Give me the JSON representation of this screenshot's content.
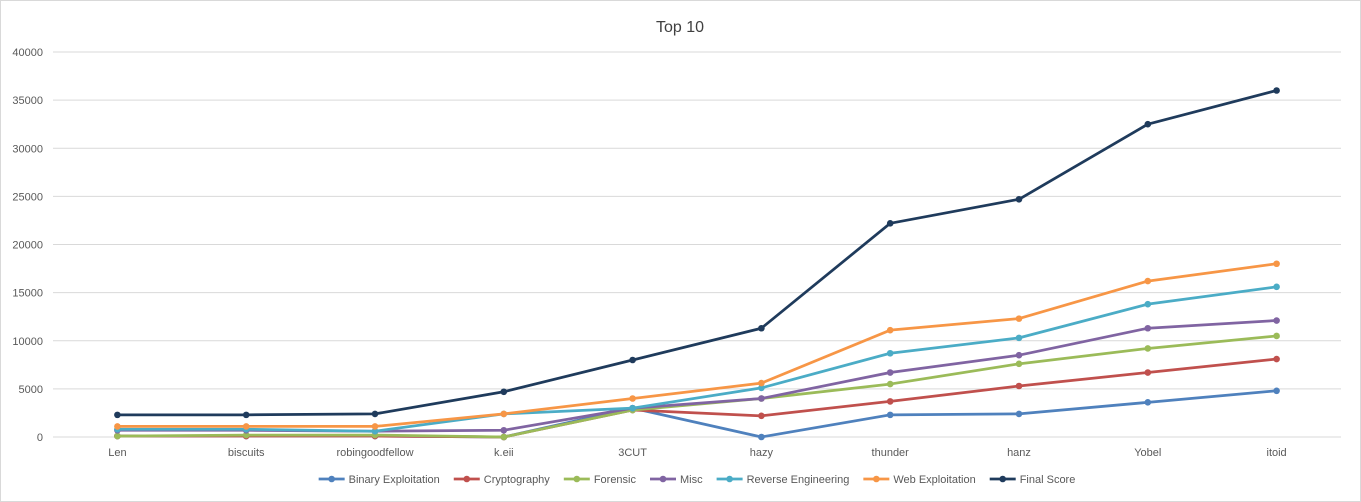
{
  "chart_data": {
    "type": "line",
    "title": "Top 10",
    "xlabel": "",
    "ylabel": "",
    "categories": [
      "Len",
      "biscuits",
      "robingoodfellow",
      "k.eii",
      "3CUT",
      "hazy",
      "thunder",
      "hanz",
      "Yobel",
      "itoid"
    ],
    "ylim": [
      0,
      40000
    ],
    "yticks": [
      0,
      5000,
      10000,
      15000,
      20000,
      25000,
      30000,
      35000,
      40000
    ],
    "grid": true,
    "legend_position": "bottom",
    "series": [
      {
        "name": "Binary Exploitation",
        "color": "#4f81bd",
        "values": [
          100,
          100,
          100,
          0,
          3000,
          0,
          2300,
          2400,
          3600,
          4800
        ]
      },
      {
        "name": "Cryptography",
        "color": "#c0504d",
        "values": [
          100,
          100,
          100,
          0,
          2800,
          2200,
          3700,
          5300,
          6700,
          8100
        ]
      },
      {
        "name": "Forensic",
        "color": "#9bbb59",
        "values": [
          100,
          200,
          200,
          0,
          2800,
          4000,
          5500,
          7600,
          9200,
          10500
        ]
      },
      {
        "name": "Misc",
        "color": "#8064a2",
        "values": [
          700,
          700,
          600,
          700,
          3000,
          4000,
          6700,
          8500,
          11300,
          12100
        ]
      },
      {
        "name": "Reverse Engineering",
        "color": "#4bacc6",
        "values": [
          800,
          800,
          600,
          2400,
          3000,
          5100,
          8700,
          10300,
          13800,
          15600
        ]
      },
      {
        "name": "Web Exploitation",
        "color": "#f79646",
        "values": [
          1100,
          1100,
          1100,
          2400,
          4000,
          5600,
          11100,
          12300,
          16200,
          18000
        ]
      },
      {
        "name": "Final Score",
        "color": "#1f3b5c",
        "values": [
          2300,
          2300,
          2400,
          4700,
          8000,
          11300,
          22200,
          24700,
          32500,
          36000
        ]
      }
    ]
  }
}
